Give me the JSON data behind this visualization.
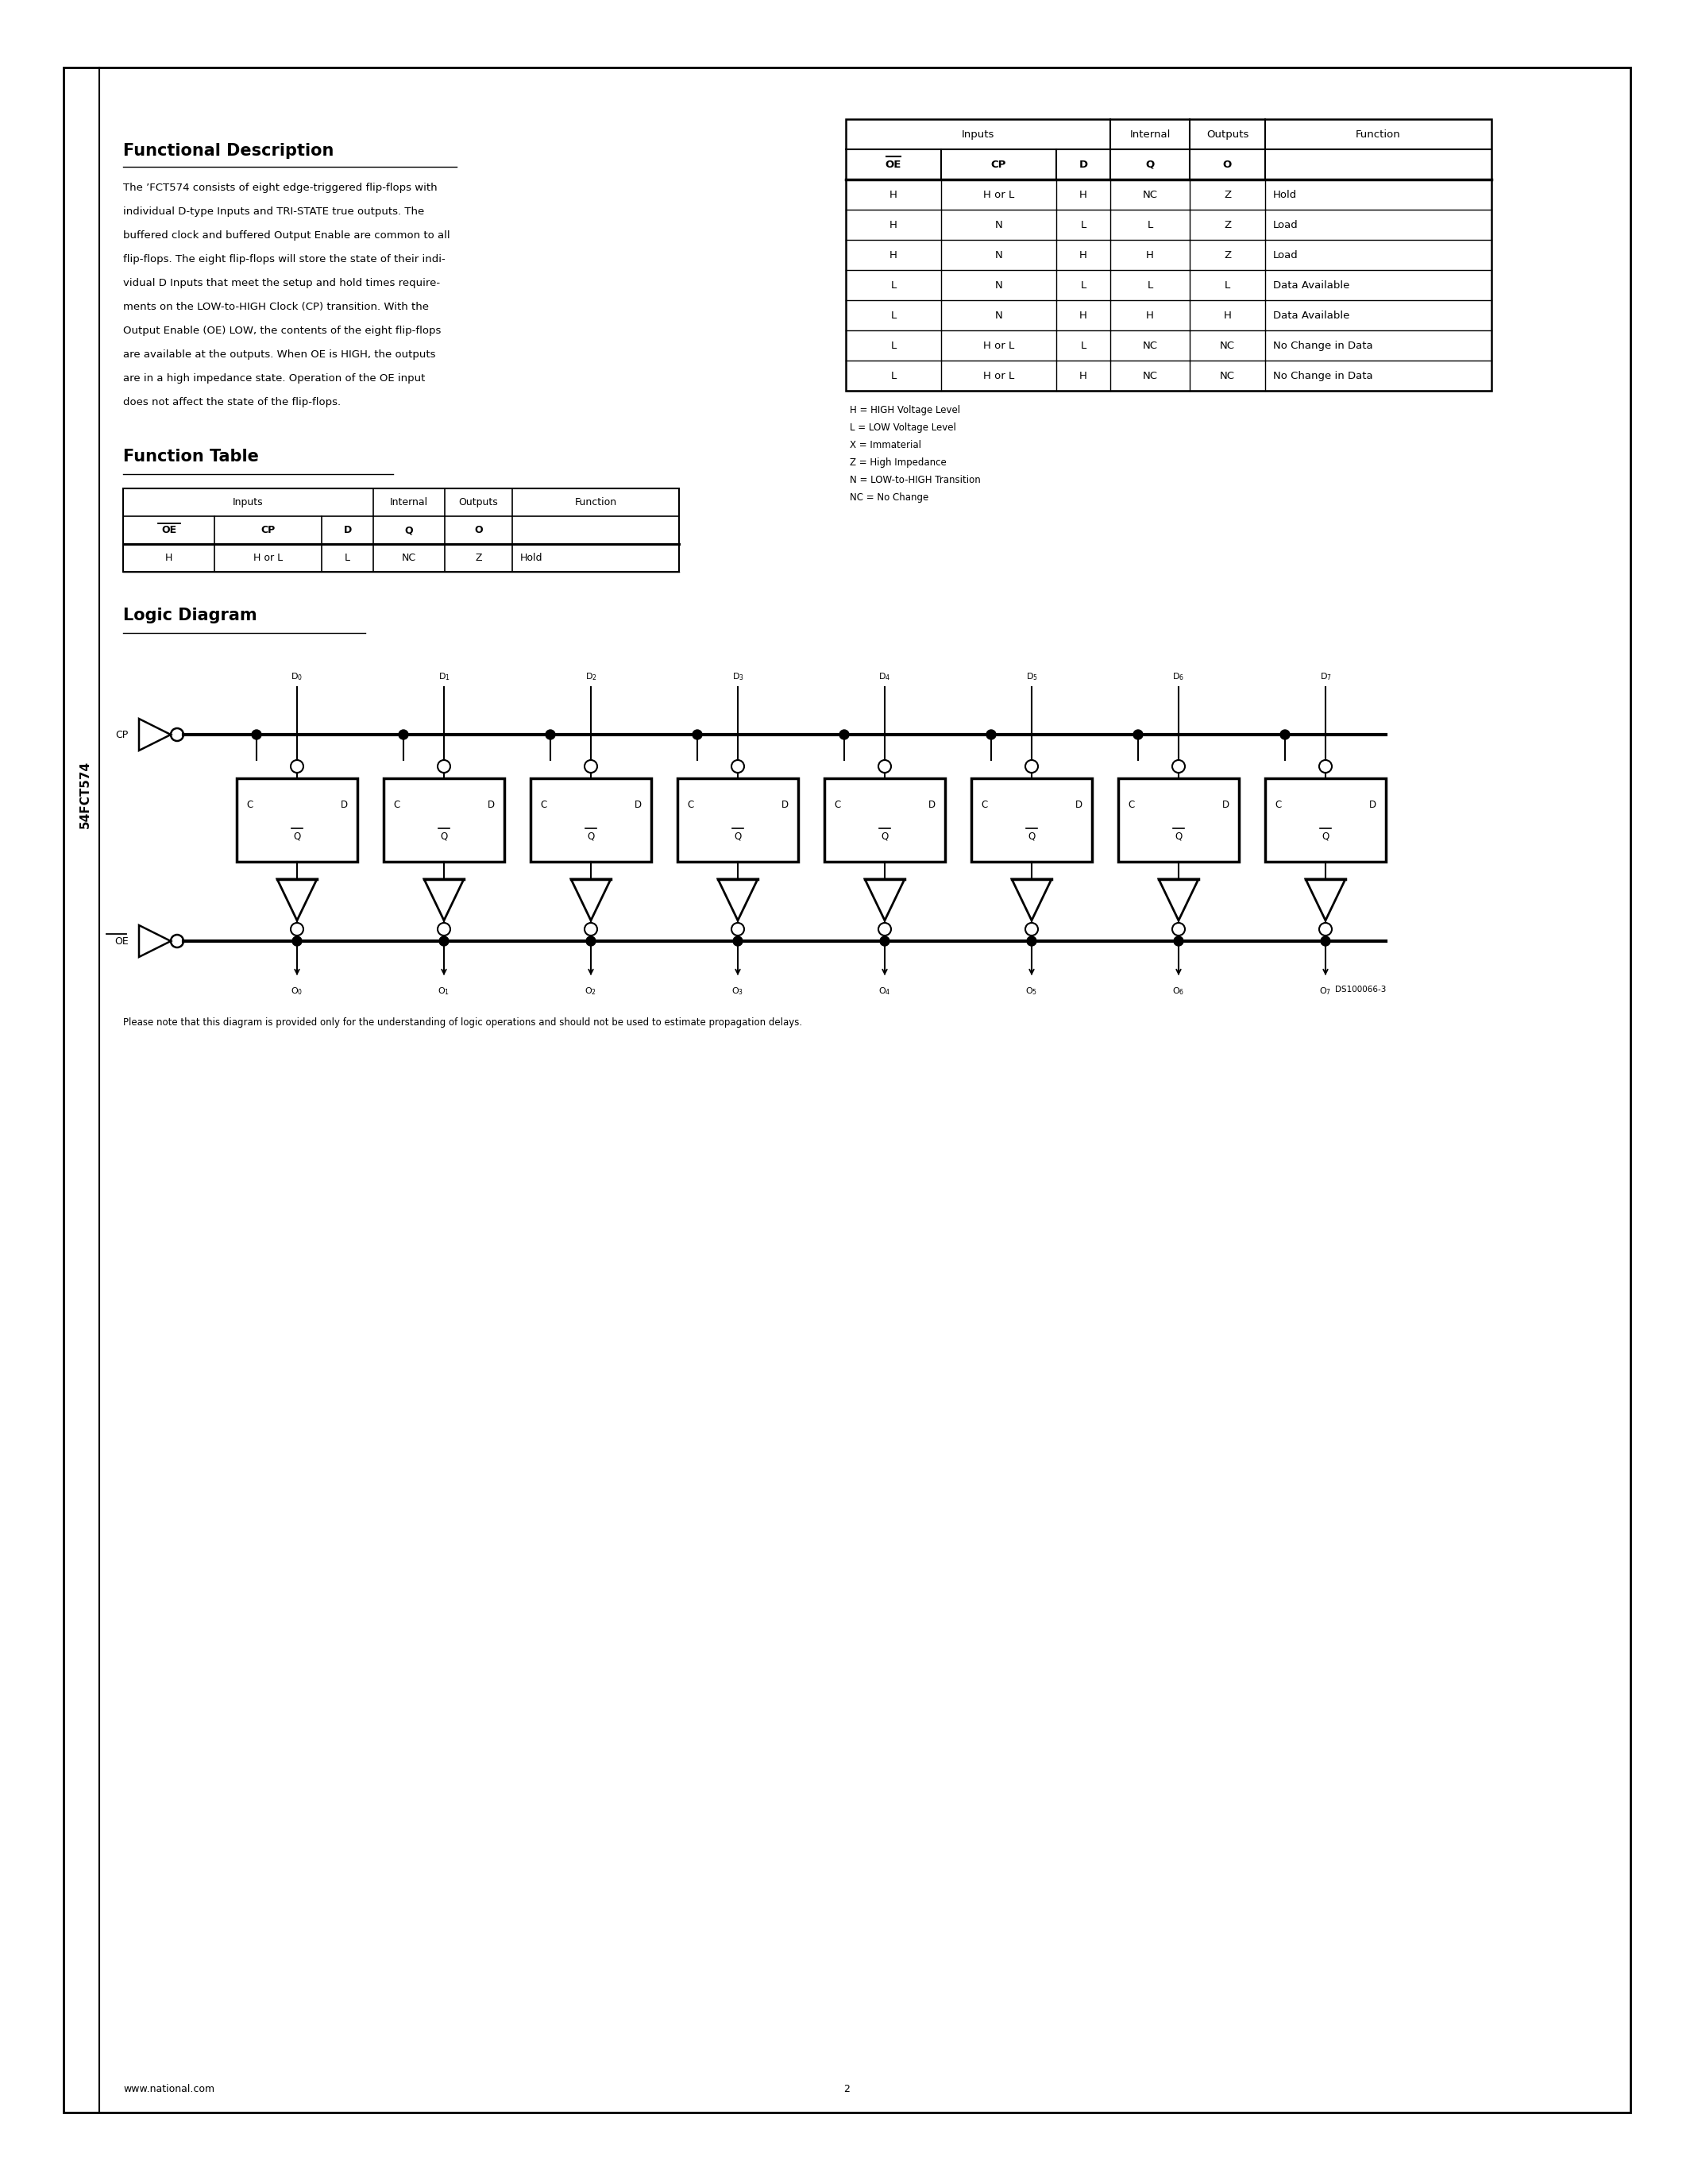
{
  "page_bg": "#ffffff",
  "functional_desc_title": "Functional Description",
  "functional_desc_lines": [
    "The ’FCT574 consists of eight edge-triggered flip-flops with",
    "individual D-type Inputs and TRI-STATE true outputs. The",
    "buffered clock and buffered Output Enable are common to all",
    "flip-flops. The eight flip-flops will store the state of their indi-",
    "vidual D Inputs that meet the setup and hold times require-",
    "ments on the LOW-to-HIGH Clock (CP) transition. With the",
    "Output Enable (OE) LOW, the contents of the eight flip-flops",
    "are available at the outputs. When OE is HIGH, the outputs",
    "are in a high impedance state. Operation of the OE input",
    "does not affect the state of the flip-flops."
  ],
  "function_table_title": "Function Table",
  "ft_rows": [
    [
      "H",
      "H or L",
      "L",
      "NC",
      "Z",
      "Hold"
    ]
  ],
  "big_table_rows": [
    [
      "H",
      "H or L",
      "H",
      "NC",
      "Z",
      "Hold"
    ],
    [
      "H",
      "N",
      "L",
      "L",
      "Z",
      "Load"
    ],
    [
      "H",
      "N",
      "H",
      "H",
      "Z",
      "Load"
    ],
    [
      "L",
      "N",
      "L",
      "L",
      "L",
      "Data Available"
    ],
    [
      "L",
      "N",
      "H",
      "H",
      "H",
      "Data Available"
    ],
    [
      "L",
      "H or L",
      "L",
      "NC",
      "NC",
      "No Change in Data"
    ],
    [
      "L",
      "H or L",
      "H",
      "NC",
      "NC",
      "No Change in Data"
    ]
  ],
  "legend_lines": [
    "H = HIGH Voltage Level",
    "L = LOW Voltage Level",
    "X = Immaterial",
    "Z = High Impedance",
    "N = LOW-to-HIGH Transition",
    "NC = No Change"
  ],
  "logic_diagram_title": "Logic Diagram",
  "diagram_note": "Please note that this diagram is provided only for the understanding of logic operations and should not be used to estimate propagation delays.",
  "side_label": "54FCT574",
  "footer_left": "www.national.com",
  "footer_center": "2",
  "part_num": "DS100066-3"
}
